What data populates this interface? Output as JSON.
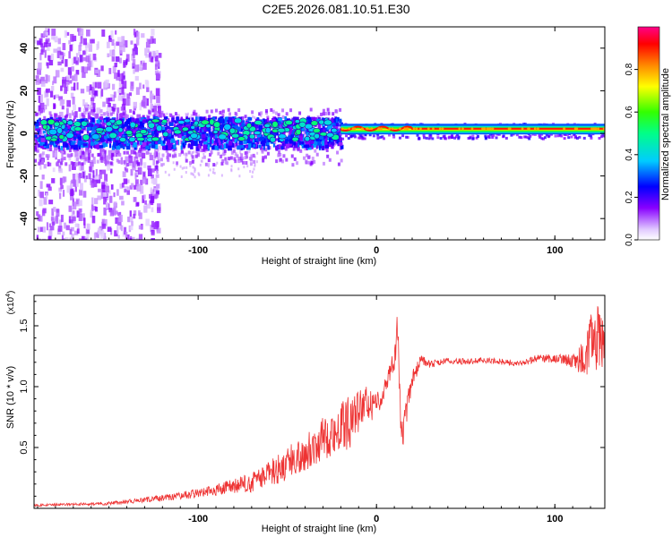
{
  "page_title": "C2E5.2026.081.10.51.E30",
  "chart_data": [
    {
      "type": "heatmap",
      "xlabel": "Height of straight line (km)",
      "ylabel": "Frequency (Hz)",
      "xlim": [
        -192,
        128
      ],
      "ylim": [
        -50,
        50
      ],
      "x_ticks": [
        -100,
        0,
        100
      ],
      "y_ticks": [
        -40,
        -20,
        0,
        20,
        40
      ],
      "colorbar": {
        "label": "Normalized spectral amplitude",
        "range": [
          0,
          1
        ],
        "ticks": [
          0.0,
          0.2,
          0.4,
          0.6,
          0.8
        ]
      },
      "bands": [
        {
          "region": "scattered",
          "x": [
            -192,
            -125
          ],
          "freq": [
            -50,
            50
          ],
          "amplitude": 0.15
        },
        {
          "region": "noisy core",
          "x": [
            -192,
            -20
          ],
          "freq": [
            -8,
            10
          ],
          "amplitude": 0.35
        },
        {
          "region": "tonal line",
          "x": [
            -20,
            128
          ],
          "freq": [
            -1,
            5
          ],
          "amplitude": 0.85
        }
      ]
    },
    {
      "type": "line",
      "xlabel": "Height of straight line (km)",
      "ylabel": "SNR (10 * v/v)",
      "y_multiplier": "(x10",
      "y_multiplier_exp": "4",
      "xlim": [
        -192,
        128
      ],
      "ylim": [
        0,
        1.75
      ],
      "x_ticks": [
        -100,
        0,
        100
      ],
      "y_ticks": [
        0.5,
        1.0,
        1.5
      ],
      "color": "#ee3333",
      "series": [
        {
          "name": "SNR",
          "x": [
            -192,
            -170,
            -150,
            -130,
            -110,
            -90,
            -70,
            -60,
            -50,
            -40,
            -30,
            -20,
            -15,
            -10,
            -5,
            0,
            5,
            10,
            12,
            14,
            20,
            25,
            30,
            40,
            50,
            60,
            70,
            80,
            90,
            100,
            110,
            115,
            120,
            125,
            128
          ],
          "envelope": [
            0.03,
            0.04,
            0.05,
            0.08,
            0.12,
            0.18,
            0.26,
            0.35,
            0.45,
            0.55,
            0.68,
            0.78,
            0.85,
            0.9,
            0.95,
            0.9,
            1.05,
            1.3,
            1.6,
            0.65,
            1.1,
            1.25,
            1.2,
            1.23,
            1.22,
            1.23,
            1.22,
            1.2,
            1.25,
            1.25,
            1.25,
            1.3,
            1.5,
            1.6,
            1.45
          ],
          "spread": [
            0.02,
            0.02,
            0.03,
            0.04,
            0.06,
            0.1,
            0.16,
            0.22,
            0.28,
            0.3,
            0.35,
            0.4,
            0.45,
            0.35,
            0.3,
            0.2,
            0.15,
            0.2,
            0.4,
            0.3,
            0.15,
            0.08,
            0.06,
            0.05,
            0.05,
            0.05,
            0.05,
            0.05,
            0.06,
            0.07,
            0.12,
            0.3,
            0.5,
            0.6,
            0.4
          ]
        }
      ]
    }
  ]
}
